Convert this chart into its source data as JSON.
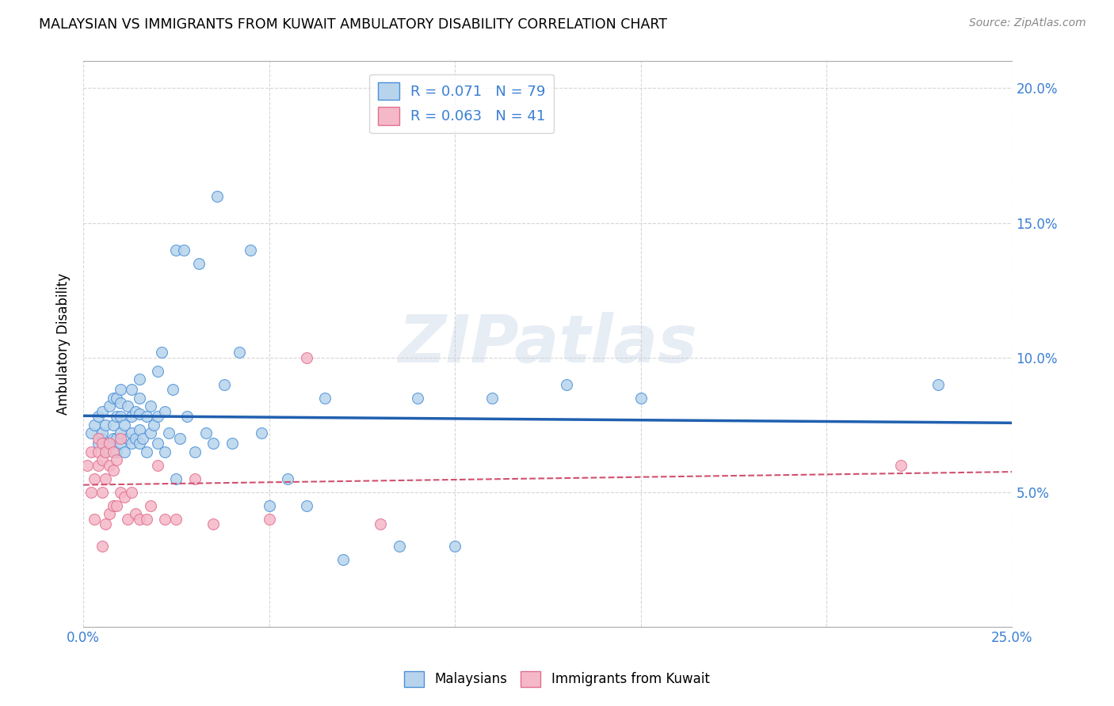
{
  "title": "MALAYSIAN VS IMMIGRANTS FROM KUWAIT AMBULATORY DISABILITY CORRELATION CHART",
  "source": "Source: ZipAtlas.com",
  "ylabel": "Ambulatory Disability",
  "xlim": [
    0.0,
    0.25
  ],
  "ylim": [
    0.0,
    0.21
  ],
  "yticks": [
    0.05,
    0.1,
    0.15,
    0.2
  ],
  "ytick_labels": [
    "5.0%",
    "10.0%",
    "15.0%",
    "20.0%"
  ],
  "xticks": [
    0.0,
    0.05,
    0.1,
    0.15,
    0.2,
    0.25
  ],
  "xtick_labels": [
    "0.0%",
    "",
    "",
    "",
    "",
    "25.0%"
  ],
  "blue_R": 0.071,
  "blue_N": 79,
  "pink_R": 0.063,
  "pink_N": 41,
  "blue_fill": "#b8d4ec",
  "pink_fill": "#f5b8c8",
  "blue_edge": "#4a90d9",
  "pink_edge": "#e07090",
  "blue_line_color": "#2060b0",
  "pink_line_color": "#d05070",
  "tick_color": "#3a7fd5",
  "watermark": "ZIPatlas",
  "blue_x": [
    0.002,
    0.003,
    0.004,
    0.004,
    0.005,
    0.005,
    0.005,
    0.006,
    0.006,
    0.007,
    0.007,
    0.008,
    0.008,
    0.008,
    0.009,
    0.009,
    0.009,
    0.009,
    0.01,
    0.01,
    0.01,
    0.01,
    0.01,
    0.011,
    0.011,
    0.012,
    0.012,
    0.013,
    0.013,
    0.013,
    0.013,
    0.014,
    0.014,
    0.015,
    0.015,
    0.015,
    0.015,
    0.015,
    0.016,
    0.017,
    0.017,
    0.018,
    0.018,
    0.019,
    0.02,
    0.02,
    0.02,
    0.021,
    0.022,
    0.022,
    0.023,
    0.024,
    0.025,
    0.025,
    0.026,
    0.027,
    0.028,
    0.03,
    0.031,
    0.033,
    0.035,
    0.036,
    0.038,
    0.04,
    0.042,
    0.045,
    0.048,
    0.05,
    0.055,
    0.06,
    0.065,
    0.07,
    0.085,
    0.09,
    0.1,
    0.11,
    0.13,
    0.15,
    0.23
  ],
  "blue_y": [
    0.072,
    0.075,
    0.068,
    0.078,
    0.07,
    0.072,
    0.08,
    0.065,
    0.075,
    0.068,
    0.082,
    0.07,
    0.075,
    0.085,
    0.065,
    0.07,
    0.078,
    0.085,
    0.068,
    0.072,
    0.078,
    0.083,
    0.088,
    0.065,
    0.075,
    0.07,
    0.082,
    0.068,
    0.072,
    0.078,
    0.088,
    0.07,
    0.08,
    0.068,
    0.073,
    0.079,
    0.085,
    0.092,
    0.07,
    0.065,
    0.078,
    0.072,
    0.082,
    0.075,
    0.068,
    0.078,
    0.095,
    0.102,
    0.065,
    0.08,
    0.072,
    0.088,
    0.055,
    0.14,
    0.07,
    0.14,
    0.078,
    0.065,
    0.135,
    0.072,
    0.068,
    0.16,
    0.09,
    0.068,
    0.102,
    0.14,
    0.072,
    0.045,
    0.055,
    0.045,
    0.085,
    0.025,
    0.03,
    0.085,
    0.03,
    0.085,
    0.09,
    0.085,
    0.09
  ],
  "pink_x": [
    0.001,
    0.002,
    0.002,
    0.003,
    0.003,
    0.004,
    0.004,
    0.004,
    0.005,
    0.005,
    0.005,
    0.005,
    0.006,
    0.006,
    0.006,
    0.007,
    0.007,
    0.007,
    0.008,
    0.008,
    0.008,
    0.009,
    0.009,
    0.01,
    0.01,
    0.011,
    0.012,
    0.013,
    0.014,
    0.015,
    0.017,
    0.018,
    0.02,
    0.022,
    0.025,
    0.03,
    0.035,
    0.05,
    0.06,
    0.08,
    0.22
  ],
  "pink_y": [
    0.06,
    0.05,
    0.065,
    0.04,
    0.055,
    0.06,
    0.065,
    0.07,
    0.03,
    0.05,
    0.062,
    0.068,
    0.038,
    0.055,
    0.065,
    0.042,
    0.06,
    0.068,
    0.045,
    0.058,
    0.065,
    0.045,
    0.062,
    0.05,
    0.07,
    0.048,
    0.04,
    0.05,
    0.042,
    0.04,
    0.04,
    0.045,
    0.06,
    0.04,
    0.04,
    0.055,
    0.038,
    0.04,
    0.1,
    0.038,
    0.06
  ]
}
